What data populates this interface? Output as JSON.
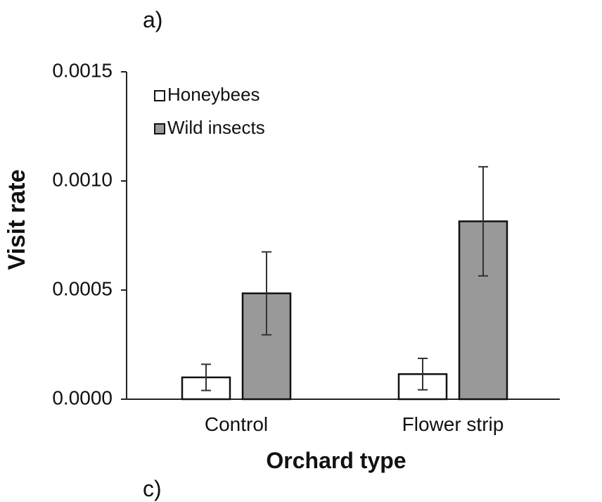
{
  "panel_labels": {
    "top": "a)",
    "bottom": "c)"
  },
  "chart_data": {
    "type": "bar",
    "title": "",
    "xlabel": "Orchard type",
    "ylabel": "Visit rate",
    "categories": [
      "Control",
      "Flower strip"
    ],
    "ylim": [
      0,
      0.0015
    ],
    "yticks": [
      0.0,
      0.0005,
      0.001,
      0.0015
    ],
    "ytick_labels": [
      "0.0000",
      "0.0005",
      "0.0010",
      "0.0015"
    ],
    "grid": false,
    "legend_position": "top-left",
    "series": [
      {
        "name": "Honeybees",
        "color": "#ffffff",
        "values": [
          0.0001,
          0.000115
        ],
        "error": [
          6e-05,
          7.2e-05
        ]
      },
      {
        "name": "Wild insects",
        "color": "#999999",
        "values": [
          0.000485,
          0.000815
        ],
        "error": [
          0.00019,
          0.00025
        ]
      }
    ]
  }
}
